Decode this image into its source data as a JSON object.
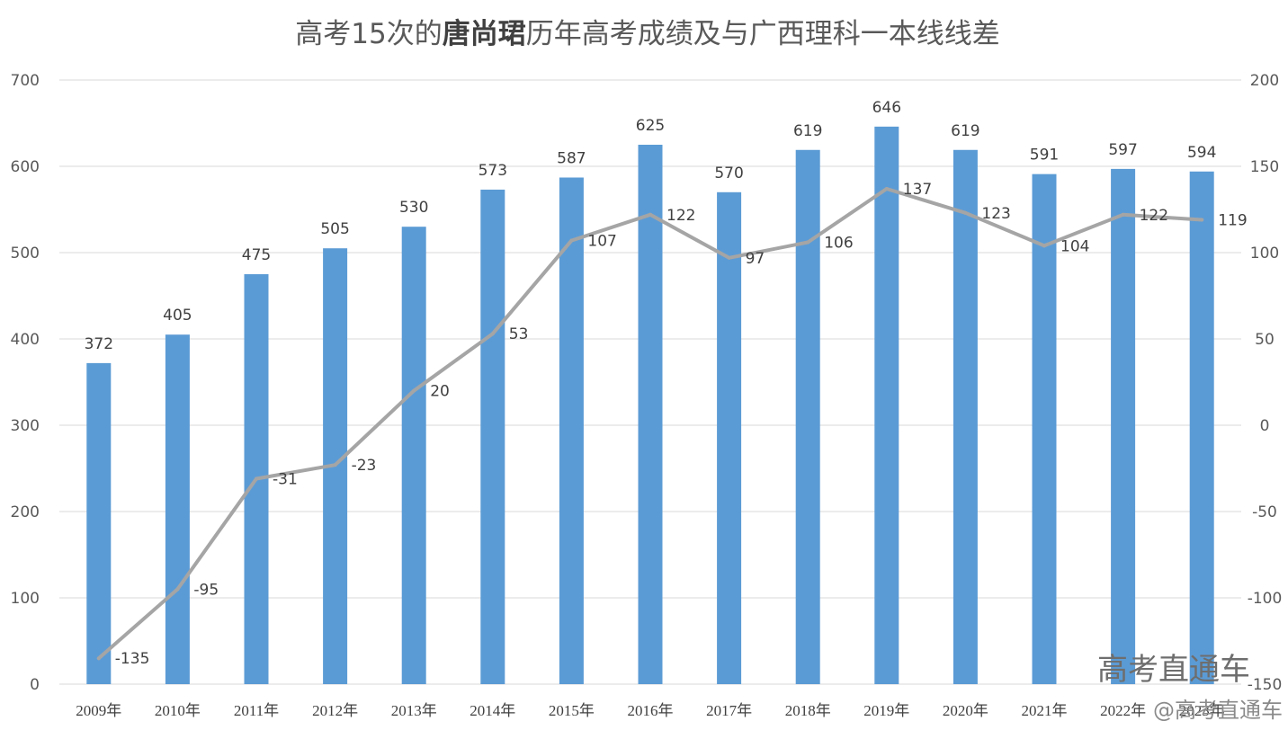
{
  "title": {
    "prefix": "高考15次的",
    "name": "唐尚珺",
    "suffix": "历年高考成绩及与广西理科一本线线差"
  },
  "watermark": {
    "text": "高考直通车",
    "handle": "@高考直通车"
  },
  "colors": {
    "bar": "#5b9bd5",
    "line": "#a5a5a5",
    "grid": "#d9d9d9",
    "text": "#595959"
  },
  "chart_data": {
    "type": "bar",
    "categories": [
      "2009年",
      "2010年",
      "2011年",
      "2012年",
      "2013年",
      "2014年",
      "2015年",
      "2016年",
      "2017年",
      "2018年",
      "2019年",
      "2020年",
      "2021年",
      "2022年",
      "2023年"
    ],
    "series": [
      {
        "type": "bar",
        "axis": "left",
        "values": [
          372,
          405,
          475,
          505,
          530,
          573,
          587,
          625,
          570,
          619,
          646,
          619,
          591,
          597,
          594
        ]
      },
      {
        "type": "line",
        "axis": "right",
        "values": [
          -135,
          -95,
          -31,
          -23,
          20,
          53,
          107,
          122,
          97,
          106,
          137,
          123,
          104,
          122,
          119
        ]
      }
    ],
    "y_left": {
      "min": 0,
      "max": 700,
      "ticks": [
        0,
        100,
        200,
        300,
        400,
        500,
        600,
        700
      ]
    },
    "y_right": {
      "min": -150,
      "max": 200,
      "ticks": [
        -150,
        -100,
        -50,
        0,
        50,
        100,
        150,
        200
      ]
    },
    "grid": true,
    "legend": "none"
  }
}
